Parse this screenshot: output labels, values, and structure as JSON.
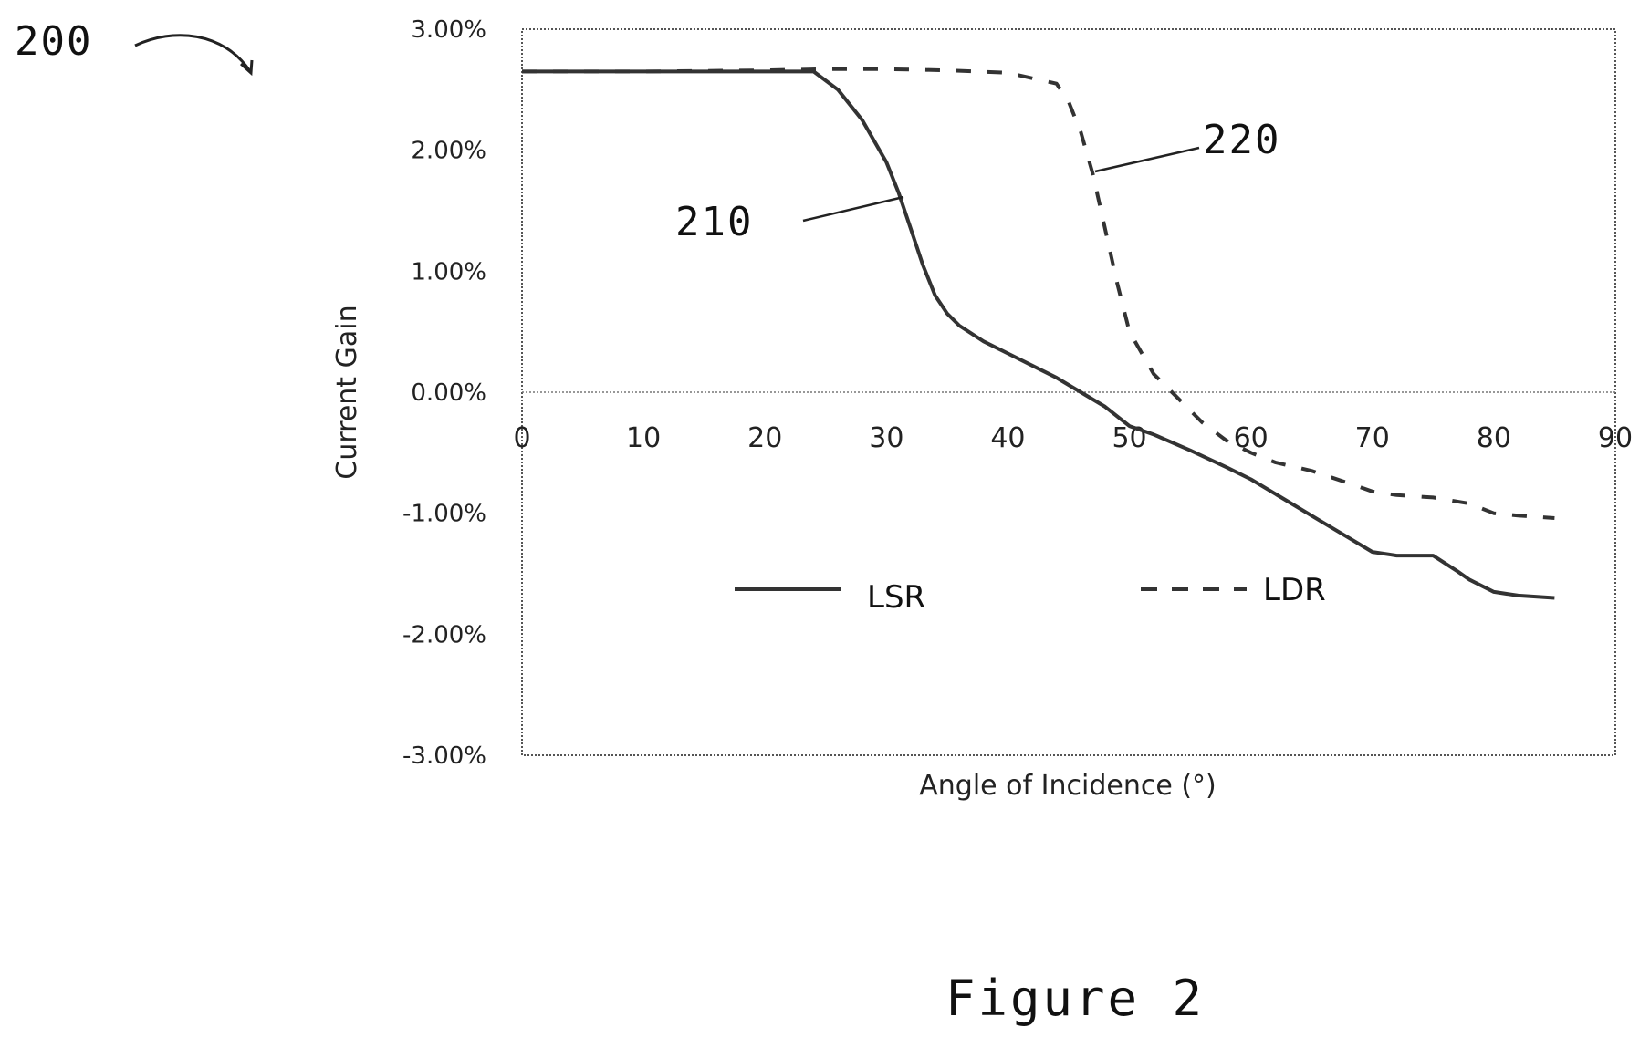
{
  "figure": {
    "ref_number": "200",
    "caption": "Figure 2"
  },
  "chart_data": {
    "type": "line",
    "xlabel": "Angle of Incidence (°)",
    "ylabel": "Current Gain",
    "xlim": [
      0,
      90
    ],
    "ylim": [
      -3.0,
      3.0
    ],
    "x_ticks": [
      "0",
      "10",
      "20",
      "30",
      "40",
      "50",
      "60",
      "70",
      "80",
      "90"
    ],
    "y_ticks": [
      "3.00%",
      "2.00%",
      "1.00%",
      "0.00%",
      "-1.00%",
      "-2.00%",
      "-3.00%"
    ],
    "y_tick_values": [
      3,
      2,
      1,
      0,
      -1,
      -2,
      -3
    ],
    "grid": false,
    "zero_line": true,
    "legend_position": "inside-bottom",
    "series": [
      {
        "name": "LSR",
        "ref_label": "210",
        "style": "solid",
        "x": [
          0,
          5,
          10,
          15,
          20,
          24,
          26,
          28,
          30,
          31,
          32,
          33,
          34,
          35,
          36,
          38,
          40,
          42,
          44,
          46,
          48,
          50,
          52,
          55,
          58,
          60,
          63,
          66,
          68,
          70,
          72,
          75,
          77,
          78,
          80,
          82,
          85
        ],
        "y": [
          2.65,
          2.65,
          2.65,
          2.65,
          2.65,
          2.65,
          2.5,
          2.25,
          1.9,
          1.65,
          1.35,
          1.05,
          0.8,
          0.65,
          0.55,
          0.42,
          0.32,
          0.22,
          0.12,
          0.0,
          -0.12,
          -0.28,
          -0.35,
          -0.48,
          -0.62,
          -0.72,
          -0.9,
          -1.08,
          -1.2,
          -1.32,
          -1.35,
          -1.35,
          -1.48,
          -1.55,
          -1.65,
          -1.68,
          -1.7
        ]
      },
      {
        "name": "LDR",
        "ref_label": "220",
        "style": "dashed",
        "x": [
          0,
          10,
          20,
          25,
          30,
          35,
          40,
          44,
          45,
          46,
          47,
          48,
          49,
          50,
          52,
          54,
          56,
          58,
          60,
          62,
          65,
          68,
          70,
          72,
          75,
          78,
          80,
          82,
          85
        ],
        "y": [
          2.65,
          2.65,
          2.66,
          2.67,
          2.67,
          2.66,
          2.64,
          2.55,
          2.4,
          2.15,
          1.8,
          1.35,
          0.9,
          0.5,
          0.15,
          -0.05,
          -0.25,
          -0.4,
          -0.5,
          -0.58,
          -0.65,
          -0.75,
          -0.82,
          -0.85,
          -0.87,
          -0.92,
          -1.0,
          -1.02,
          -1.04
        ]
      }
    ]
  }
}
